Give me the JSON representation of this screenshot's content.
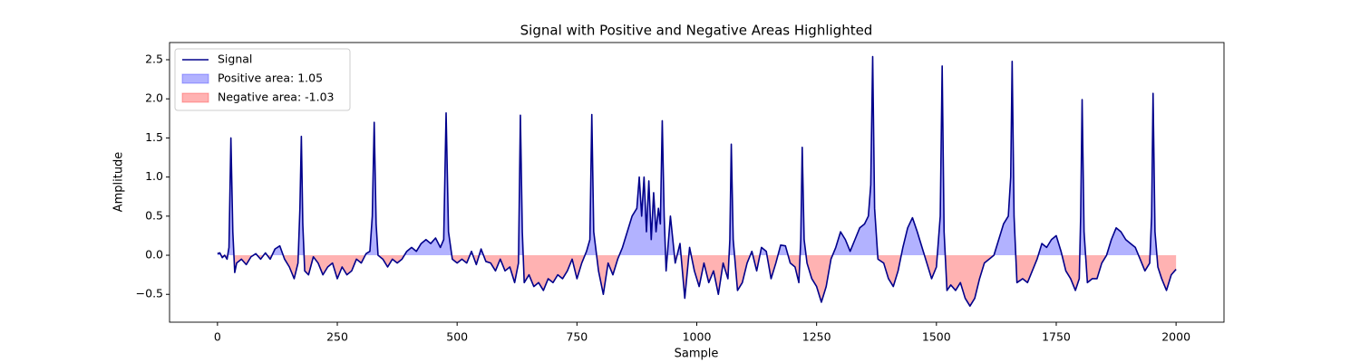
{
  "chart_data": {
    "type": "line",
    "title": "Signal with Positive and Negative Areas Highlighted",
    "xlabel": "Sample",
    "ylabel": "Amplitude",
    "xlim": [
      -100,
      2100
    ],
    "ylim": [
      -0.856,
      2.72
    ],
    "xticks": [
      0,
      250,
      500,
      750,
      1000,
      1250,
      1500,
      1750,
      2000
    ],
    "yticks": [
      {
        "value": -0.5,
        "label": "−0.5"
      },
      {
        "value": 0,
        "label": "0.0"
      },
      0.5,
      {
        "value": 1,
        "label": "1.0"
      },
      1.5,
      {
        "value": 2,
        "label": "2.0"
      },
      2.5
    ],
    "legend": "upper left",
    "x": [
      0,
      5,
      10,
      15,
      20,
      24,
      28,
      32,
      36,
      40,
      50,
      60,
      70,
      80,
      90,
      100,
      110,
      120,
      130,
      140,
      150,
      160,
      168,
      172,
      175,
      178,
      182,
      190,
      200,
      210,
      220,
      230,
      240,
      250,
      260,
      270,
      280,
      290,
      300,
      310,
      318,
      323,
      327,
      331,
      335,
      345,
      355,
      365,
      375,
      385,
      395,
      405,
      415,
      425,
      435,
      445,
      455,
      465,
      472,
      477,
      482,
      490,
      500,
      510,
      520,
      530,
      540,
      550,
      560,
      570,
      580,
      590,
      600,
      610,
      620,
      628,
      632,
      636,
      640,
      650,
      660,
      670,
      680,
      690,
      700,
      710,
      720,
      730,
      740,
      750,
      760,
      770,
      777,
      781,
      785,
      795,
      805,
      815,
      825,
      835,
      845,
      855,
      865,
      875,
      880,
      885,
      890,
      895,
      900,
      905,
      910,
      915,
      920,
      924,
      928,
      932,
      936,
      945,
      955,
      965,
      975,
      985,
      995,
      1005,
      1015,
      1025,
      1035,
      1045,
      1055,
      1065,
      1069,
      1072,
      1076,
      1085,
      1095,
      1105,
      1115,
      1125,
      1135,
      1145,
      1155,
      1165,
      1175,
      1185,
      1195,
      1205,
      1213,
      1217,
      1220,
      1224,
      1230,
      1240,
      1250,
      1260,
      1270,
      1280,
      1290,
      1300,
      1310,
      1320,
      1330,
      1340,
      1350,
      1358,
      1363,
      1367,
      1371,
      1378,
      1390,
      1400,
      1410,
      1420,
      1430,
      1440,
      1450,
      1460,
      1470,
      1480,
      1490,
      1500,
      1508,
      1512,
      1516,
      1522,
      1530,
      1540,
      1550,
      1560,
      1570,
      1580,
      1590,
      1600,
      1610,
      1620,
      1630,
      1640,
      1650,
      1655,
      1658,
      1662,
      1668,
      1680,
      1690,
      1700,
      1710,
      1720,
      1730,
      1740,
      1750,
      1760,
      1770,
      1780,
      1790,
      1798,
      1801,
      1804,
      1808,
      1815,
      1825,
      1835,
      1845,
      1855,
      1865,
      1875,
      1885,
      1895,
      1905,
      1915,
      1925,
      1935,
      1945,
      1949,
      1952,
      1956,
      1962,
      1970,
      1980,
      1990,
      2000
    ],
    "series": [
      {
        "name": "Signal",
        "color": "#00008b",
        "values": [
          0.02,
          0.03,
          -0.03,
          0.0,
          -0.05,
          0.1,
          1.5,
          0.3,
          -0.22,
          -0.1,
          -0.05,
          -0.12,
          -0.02,
          0.02,
          -0.05,
          0.03,
          -0.05,
          0.08,
          0.12,
          -0.05,
          -0.15,
          -0.3,
          -0.1,
          0.6,
          1.52,
          0.4,
          -0.2,
          -0.25,
          -0.02,
          -0.1,
          -0.25,
          -0.15,
          -0.1,
          -0.3,
          -0.15,
          -0.25,
          -0.2,
          -0.05,
          -0.1,
          0.02,
          0.05,
          0.5,
          1.7,
          0.4,
          0.0,
          -0.05,
          -0.15,
          -0.05,
          -0.1,
          -0.05,
          0.05,
          0.1,
          0.05,
          0.15,
          0.2,
          0.15,
          0.22,
          0.1,
          0.2,
          1.82,
          0.3,
          -0.05,
          -0.1,
          -0.05,
          -0.1,
          0.05,
          -0.12,
          0.08,
          -0.08,
          -0.1,
          -0.2,
          -0.05,
          -0.2,
          -0.15,
          -0.35,
          -0.1,
          1.79,
          0.3,
          -0.35,
          -0.25,
          -0.4,
          -0.35,
          -0.45,
          -0.3,
          -0.35,
          -0.25,
          -0.3,
          -0.2,
          -0.05,
          -0.3,
          -0.1,
          0.05,
          0.2,
          1.8,
          0.3,
          -0.2,
          -0.5,
          -0.1,
          -0.25,
          -0.05,
          0.1,
          0.3,
          0.5,
          0.6,
          1.0,
          0.5,
          1.0,
          0.3,
          0.95,
          0.2,
          0.8,
          0.3,
          0.6,
          0.4,
          1.72,
          0.5,
          -0.2,
          0.5,
          -0.1,
          0.15,
          -0.55,
          0.1,
          -0.2,
          -0.4,
          -0.1,
          -0.35,
          -0.2,
          -0.5,
          -0.1,
          -0.3,
          0.2,
          1.42,
          0.2,
          -0.45,
          -0.35,
          -0.1,
          0.05,
          -0.2,
          0.1,
          0.05,
          -0.3,
          -0.1,
          0.13,
          0.12,
          -0.1,
          -0.15,
          -0.35,
          0.2,
          1.38,
          0.2,
          -0.1,
          -0.3,
          -0.4,
          -0.6,
          -0.4,
          -0.05,
          0.1,
          0.3,
          0.2,
          0.05,
          0.2,
          0.35,
          0.4,
          0.5,
          0.9,
          2.54,
          0.6,
          -0.05,
          -0.1,
          -0.3,
          -0.4,
          -0.2,
          0.1,
          0.35,
          0.48,
          0.3,
          0.1,
          -0.1,
          -0.3,
          -0.15,
          0.5,
          2.42,
          0.3,
          -0.45,
          -0.38,
          -0.45,
          -0.35,
          -0.55,
          -0.65,
          -0.55,
          -0.3,
          -0.1,
          -0.05,
          0.0,
          0.2,
          0.4,
          0.5,
          1.0,
          2.48,
          0.5,
          -0.35,
          -0.3,
          -0.35,
          -0.2,
          -0.05,
          0.15,
          0.1,
          0.2,
          0.25,
          0.05,
          -0.2,
          -0.3,
          -0.45,
          -0.3,
          0.5,
          1.99,
          0.3,
          -0.35,
          -0.3,
          -0.3,
          -0.1,
          0.0,
          0.2,
          0.35,
          0.3,
          0.2,
          0.15,
          0.1,
          -0.05,
          -0.2,
          -0.1,
          0.5,
          2.07,
          0.3,
          -0.15,
          -0.3,
          -0.45,
          -0.25,
          -0.18
        ]
      }
    ],
    "areas": [
      {
        "name": "Positive area: 1.05",
        "color": "#0000ff",
        "where": "above"
      },
      {
        "name": "Negative area: -1.03",
        "color": "#ff0000",
        "where": "below"
      }
    ]
  }
}
